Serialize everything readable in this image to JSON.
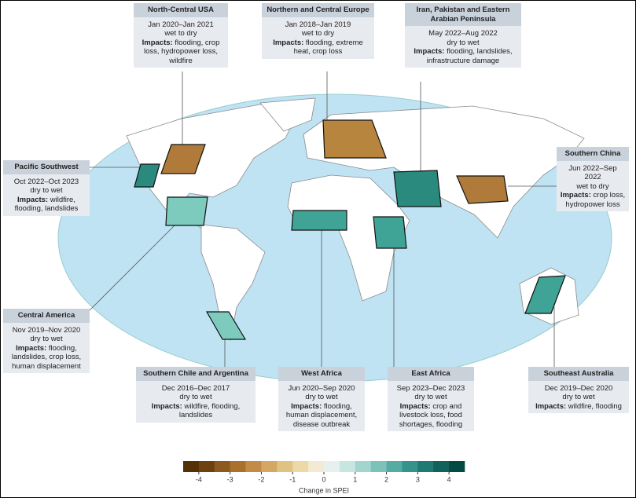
{
  "impacts_label": "Impacts:",
  "regions": [
    {
      "name": "North-Central USA",
      "dates": "Jan 2020–Jan 2021",
      "change": "wet to dry",
      "impacts": "flooding, crop loss, hydropower loss, wildfire"
    },
    {
      "name": "Northern and Central Europe",
      "dates": "Jan 2018–Jan 2019",
      "change": "wet to dry",
      "impacts": "flooding, extreme heat, crop loss"
    },
    {
      "name": "Iran, Pakistan and Eastern Arabian Peninsula",
      "dates": "May 2022–Aug 2022",
      "change": "dry to wet",
      "impacts": "flooding, landslides, infrastructure damage"
    },
    {
      "name": "Pacific Southwest",
      "dates": "Oct 2022–Oct 2023",
      "change": "dry to wet",
      "impacts": "wildfire, flooding, landslides"
    },
    {
      "name": "Southern China",
      "dates": "Jun 2022–Sep 2022",
      "change": "wet to dry",
      "impacts": "crop loss, hydropower loss"
    },
    {
      "name": "Central America",
      "dates": "Nov 2019–Nov 2020",
      "change": "dry to wet",
      "impacts": "flooding, landslides, crop loss, human displacement"
    },
    {
      "name": "Southern Chile and Argentina",
      "dates": "Dec 2016–Dec 2017",
      "change": "dry to wet",
      "impacts": "wildfire, flooding, landslides"
    },
    {
      "name": "West Africa",
      "dates": "Jun 2020–Sep 2020",
      "change": "dry to wet",
      "impacts": "flooding, human displacement, disease outbreak"
    },
    {
      "name": "East Africa",
      "dates": "Sep 2023–Dec 2023",
      "change": "dry to wet",
      "impacts": "crop and livestock loss, food shortages, flooding"
    },
    {
      "name": "Southeast Australia",
      "dates": "Dec 2019–Dec 2020",
      "change": "dry to wet",
      "impacts": "wildfire, flooding"
    }
  ],
  "colorbar": {
    "label": "Change in SPEI",
    "lim": [
      -4.5,
      4.5
    ],
    "ticks": [
      -4,
      -3,
      -2,
      -1,
      0,
      1,
      2,
      3,
      4
    ],
    "colors": [
      "#543005",
      "#6e4210",
      "#8c5a1e",
      "#a9712c",
      "#c28c48",
      "#d4a862",
      "#e0c283",
      "#ebd9a8",
      "#f2ead3",
      "#e6f1ee",
      "#c8e6e1",
      "#a3d5cf",
      "#7cc2ba",
      "#56aca3",
      "#35938b",
      "#1f7a73",
      "#10625b",
      "#034a43"
    ]
  }
}
